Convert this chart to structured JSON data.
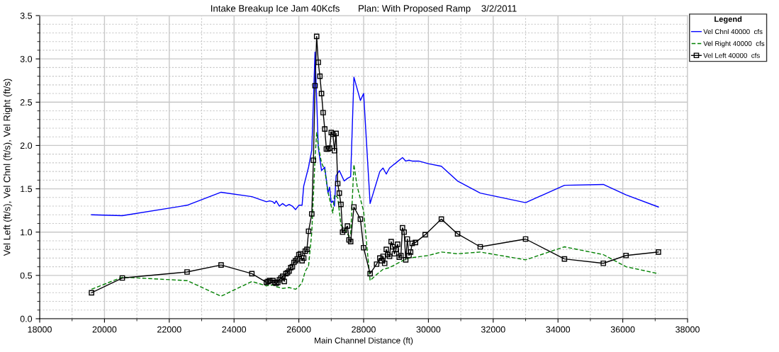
{
  "chart_data": {
    "type": "line",
    "title": "Intake Breakup Ice Jam 40Kcfs       Plan: With Proposed Ramp    3/2/2011",
    "xlabel": "Main Channel Distance (ft)",
    "ylabel": "Vel Left (ft/s), Vel Chnl (ft/s), Vel Right (ft/s)",
    "legend_title": "Legend",
    "xlim": [
      18000,
      38000
    ],
    "ylim": [
      0,
      3.5
    ],
    "xticks": [
      18000,
      {
        "value": 19000,
        "label": null
      },
      20000,
      {
        "value": 21000,
        "label": null
      },
      22000,
      {
        "value": 23000,
        "label": null
      },
      24000,
      {
        "value": 25000,
        "label": null
      },
      26000,
      {
        "value": 27000,
        "label": null
      },
      28000,
      {
        "value": 29000,
        "label": null
      },
      30000,
      {
        "value": 31000,
        "label": null
      },
      32000,
      {
        "value": 33000,
        "label": null
      },
      34000,
      {
        "value": 35000,
        "label": null
      },
      36000,
      {
        "value": 37000,
        "label": null
      },
      38000
    ],
    "yticks": [
      {
        "value": 0,
        "label": "0.0"
      },
      {
        "value": 0.1,
        "label": null
      },
      {
        "value": 0.2,
        "label": null
      },
      {
        "value": 0.3,
        "label": null
      },
      {
        "value": 0.4,
        "label": null
      },
      0.5,
      {
        "value": 0.6,
        "label": null
      },
      {
        "value": 0.7,
        "label": null
      },
      {
        "value": 0.8,
        "label": null
      },
      {
        "value": 0.9,
        "label": null
      },
      {
        "value": 1,
        "label": "1.0"
      },
      {
        "value": 1.1,
        "label": null
      },
      {
        "value": 1.2,
        "label": null
      },
      {
        "value": 1.3,
        "label": null
      },
      {
        "value": 1.4,
        "label": null
      },
      1.5,
      {
        "value": 1.6,
        "label": null
      },
      {
        "value": 1.7,
        "label": null
      },
      {
        "value": 1.8,
        "label": null
      },
      {
        "value": 1.9,
        "label": null
      },
      {
        "value": 2,
        "label": "2.0"
      },
      {
        "value": 2.1,
        "label": null
      },
      {
        "value": 2.2,
        "label": null
      },
      {
        "value": 2.3,
        "label": null
      },
      {
        "value": 2.4,
        "label": null
      },
      2.5,
      {
        "value": 2.6,
        "label": null
      },
      {
        "value": 2.7,
        "label": null
      },
      {
        "value": 2.8,
        "label": null
      },
      {
        "value": 2.9,
        "label": null
      },
      {
        "value": 3,
        "label": "3.0"
      },
      {
        "value": 3.1,
        "label": null
      },
      {
        "value": 3.2,
        "label": null
      },
      {
        "value": 3.3,
        "label": null
      },
      {
        "value": 3.4,
        "label": null
      },
      3.5
    ],
    "grid": true,
    "legend": "top right",
    "series": [
      {
        "name": "Vel Chnl 40000  cfs",
        "color": "#0000ff",
        "line_style": "solid",
        "marker": "none",
        "x": [
          19600,
          20550,
          22550,
          23600,
          24550,
          25000,
          25100,
          25200,
          25250,
          25300,
          25400,
          25500,
          25600,
          25700,
          25800,
          25900,
          26000,
          26100,
          26150,
          26300,
          26400,
          26500,
          26600,
          26700,
          26800,
          26900,
          26950,
          27000,
          27050,
          27100,
          27150,
          27250,
          27400,
          27500,
          27600,
          27700,
          27900,
          28000,
          28200,
          28500,
          28600,
          28700,
          28800,
          28900,
          29000,
          29200,
          29300,
          29400,
          29500,
          29700,
          30000,
          30400,
          30900,
          31600,
          33000,
          34200,
          35400,
          36100,
          37100
        ],
        "values": [
          1.2,
          1.19,
          1.31,
          1.46,
          1.41,
          1.35,
          1.36,
          1.35,
          1.33,
          1.36,
          1.3,
          1.33,
          1.3,
          1.32,
          1.3,
          1.26,
          1.31,
          1.31,
          1.53,
          1.75,
          1.95,
          3.08,
          1.98,
          1.71,
          1.75,
          1.45,
          1.52,
          1.34,
          1.36,
          1.3,
          1.65,
          1.71,
          1.59,
          1.62,
          1.64,
          2.79,
          2.52,
          2.6,
          1.33,
          1.7,
          1.74,
          1.67,
          1.74,
          1.77,
          1.8,
          1.86,
          1.82,
          1.83,
          1.82,
          1.82,
          1.79,
          1.76,
          1.59,
          1.45,
          1.34,
          1.54,
          1.55,
          1.43,
          1.29
        ]
      },
      {
        "name": "Vel Right 40000  cfs",
        "color": "#008000",
        "line_style": "dashed",
        "marker": "none",
        "x": [
          19600,
          20550,
          22550,
          23600,
          24550,
          25000,
          25200,
          25300,
          25500,
          25700,
          25900,
          26000,
          26100,
          26200,
          26300,
          26400,
          26500,
          26550,
          26600,
          26700,
          26800,
          26900,
          27000,
          27050,
          27100,
          27200,
          27300,
          27400,
          27550,
          27600,
          27700,
          27800,
          28000,
          28200,
          28400,
          28600,
          28800,
          29000,
          29200,
          29400,
          30000,
          30400,
          30900,
          31600,
          33000,
          34200,
          35400,
          36100,
          37100
        ],
        "values": [
          0.34,
          0.48,
          0.44,
          0.26,
          0.43,
          0.38,
          0.39,
          0.37,
          0.35,
          0.36,
          0.34,
          0.37,
          0.42,
          0.55,
          0.61,
          1.0,
          1.85,
          2.15,
          2.0,
          1.8,
          1.72,
          1.46,
          1.3,
          1.22,
          1.43,
          1.4,
          1.08,
          1.04,
          0.95,
          0.97,
          1.78,
          1.53,
          1.24,
          0.44,
          0.51,
          0.57,
          0.59,
          0.63,
          0.67,
          0.7,
          0.73,
          0.77,
          0.75,
          0.77,
          0.68,
          0.83,
          0.74,
          0.6,
          0.52
        ]
      },
      {
        "name": "Vel Left 40000  cfs",
        "color": "#000000",
        "line_style": "solid",
        "marker": "square",
        "x": [
          19600,
          20550,
          22550,
          23600,
          24550,
          25000,
          25050,
          25100,
          25200,
          25250,
          25300,
          25350,
          25400,
          25450,
          25500,
          25550,
          25600,
          25650,
          25700,
          25750,
          25800,
          25850,
          25900,
          25950,
          26000,
          26050,
          26100,
          26150,
          26200,
          26250,
          26300,
          26400,
          26450,
          26500,
          26550,
          26600,
          26650,
          26700,
          26750,
          26800,
          26850,
          26900,
          26950,
          27000,
          27050,
          27100,
          27150,
          27200,
          27250,
          27300,
          27350,
          27400,
          27500,
          27550,
          27600,
          27700,
          27900,
          28000,
          28200,
          28400,
          28500,
          28550,
          28600,
          28650,
          28700,
          28750,
          28800,
          28850,
          28900,
          28950,
          29000,
          29050,
          29100,
          29150,
          29200,
          29250,
          29300,
          29350,
          29400,
          29450,
          29500,
          29600,
          29900,
          30400,
          30900,
          31600,
          33000,
          34200,
          35400,
          36100,
          37100
        ],
        "values": [
          0.3,
          0.47,
          0.54,
          0.62,
          0.52,
          0.42,
          0.43,
          0.44,
          0.44,
          0.42,
          0.41,
          0.42,
          0.45,
          0.47,
          0.49,
          0.43,
          0.52,
          0.53,
          0.55,
          0.59,
          0.6,
          0.65,
          0.67,
          0.69,
          0.74,
          0.75,
          0.67,
          0.7,
          0.78,
          0.8,
          1.01,
          1.21,
          1.83,
          2.69,
          3.26,
          2.96,
          2.8,
          2.6,
          2.38,
          2.19,
          1.96,
          1.96,
          1.97,
          2.15,
          2.13,
          1.94,
          2.14,
          1.56,
          1.45,
          1.32,
          1.0,
          1.02,
          1.07,
          0.91,
          0.89,
          1.29,
          1.15,
          0.82,
          0.52,
          0.63,
          0.7,
          0.67,
          0.72,
          0.64,
          0.8,
          0.74,
          0.72,
          0.89,
          0.83,
          0.75,
          0.8,
          0.86,
          0.71,
          0.73,
          1.05,
          1.0,
          0.68,
          0.92,
          0.73,
          0.77,
          0.87,
          0.88,
          0.97,
          1.15,
          0.98,
          0.83,
          0.92,
          0.69,
          0.64,
          0.73,
          0.77
        ]
      }
    ]
  }
}
